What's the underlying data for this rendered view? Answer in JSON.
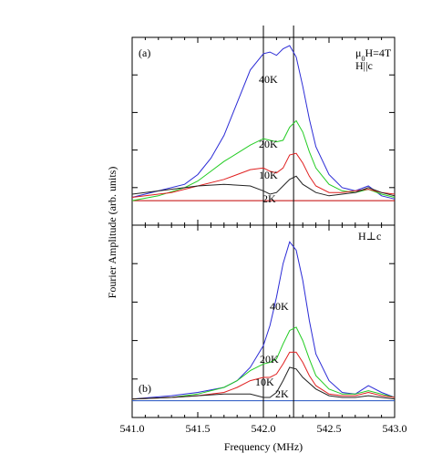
{
  "chart_data": [
    {
      "type": "line",
      "panel_label": "(a)",
      "annotation": [
        "μ0H=4T",
        "H||c"
      ],
      "xlabel": "Frequency (MHz)",
      "ylabel": "Fourier Amplitude (arb. units)",
      "xlim": [
        541.0,
        543.0
      ],
      "ylim": [
        -0.15,
        1.0
      ],
      "grid": false,
      "legend": "inline labels beside each curve",
      "reference_lines_x": [
        542.0,
        542.23
      ],
      "baseline": {
        "y": 0.0,
        "color": "#c00000"
      },
      "series": [
        {
          "name": "40K",
          "color": "#2b2bd6",
          "x": [
            541.0,
            541.2,
            541.4,
            541.5,
            541.6,
            541.7,
            541.8,
            541.9,
            542.0,
            542.05,
            542.1,
            542.15,
            542.2,
            542.25,
            542.3,
            542.35,
            542.4,
            542.5,
            542.6,
            542.7,
            542.8,
            542.9,
            543.0
          ],
          "y": [
            0.02,
            0.06,
            0.1,
            0.16,
            0.26,
            0.4,
            0.6,
            0.8,
            0.9,
            0.91,
            0.89,
            0.93,
            0.95,
            0.88,
            0.7,
            0.5,
            0.33,
            0.16,
            0.08,
            0.06,
            0.09,
            0.03,
            0.01
          ]
        },
        {
          "name": "20K",
          "color": "#22cc22",
          "x": [
            541.0,
            541.2,
            541.4,
            541.5,
            541.6,
            541.7,
            541.8,
            541.9,
            542.0,
            542.1,
            542.15,
            542.2,
            542.25,
            542.3,
            542.35,
            542.4,
            542.5,
            542.6,
            542.7,
            542.8,
            542.9,
            543.0
          ],
          "y": [
            0.0,
            0.03,
            0.08,
            0.12,
            0.18,
            0.24,
            0.29,
            0.34,
            0.38,
            0.36,
            0.37,
            0.45,
            0.49,
            0.42,
            0.3,
            0.2,
            0.1,
            0.06,
            0.05,
            0.07,
            0.04,
            0.02
          ]
        },
        {
          "name": "10K",
          "color": "#e02020",
          "x": [
            541.0,
            541.3,
            541.5,
            541.7,
            541.8,
            541.9,
            542.0,
            542.05,
            542.1,
            542.15,
            542.2,
            542.25,
            542.3,
            542.35,
            542.4,
            542.5,
            542.6,
            542.7,
            542.8,
            542.9,
            543.0
          ],
          "y": [
            0.02,
            0.05,
            0.09,
            0.13,
            0.16,
            0.19,
            0.2,
            0.18,
            0.17,
            0.2,
            0.28,
            0.29,
            0.23,
            0.15,
            0.09,
            0.05,
            0.05,
            0.06,
            0.07,
            0.05,
            0.04
          ]
        },
        {
          "name": "2K",
          "color": "#222222",
          "x": [
            541.0,
            541.3,
            541.5,
            541.7,
            541.9,
            542.0,
            542.05,
            542.1,
            542.15,
            542.2,
            542.25,
            542.3,
            542.4,
            542.5,
            542.6,
            542.7,
            542.8,
            542.9,
            543.0
          ],
          "y": [
            0.04,
            0.07,
            0.09,
            0.1,
            0.09,
            0.06,
            0.04,
            0.05,
            0.09,
            0.13,
            0.15,
            0.1,
            0.05,
            0.03,
            0.04,
            0.05,
            0.08,
            0.05,
            0.03
          ]
        }
      ]
    },
    {
      "type": "line",
      "panel_label": "(b)",
      "annotation": [
        "H⊥c"
      ],
      "xlabel": "Frequency (MHz)",
      "xlim": [
        541.0,
        543.0
      ],
      "ylim": [
        -0.1,
        1.05
      ],
      "grid": false,
      "legend": "inline labels beside each curve",
      "reference_lines_x": [
        542.0,
        542.23
      ],
      "baseline": {
        "y": 0.0,
        "color": "#2050c0"
      },
      "xticks": [
        "541.0",
        "541.5",
        "542.0",
        "542.5",
        "543.0"
      ],
      "series": [
        {
          "name": "40K",
          "color": "#2b2bd6",
          "x": [
            541.0,
            541.3,
            541.5,
            541.7,
            541.8,
            541.9,
            542.0,
            542.05,
            542.1,
            542.15,
            542.2,
            542.25,
            542.3,
            542.35,
            542.4,
            542.5,
            542.6,
            542.7,
            542.8,
            542.9,
            543.0
          ],
          "y": [
            0.01,
            0.03,
            0.05,
            0.08,
            0.12,
            0.2,
            0.33,
            0.45,
            0.62,
            0.82,
            0.95,
            0.9,
            0.72,
            0.48,
            0.28,
            0.12,
            0.05,
            0.04,
            0.09,
            0.05,
            0.02
          ]
        },
        {
          "name": "20K",
          "color": "#22cc22",
          "x": [
            541.0,
            541.3,
            541.5,
            541.7,
            541.8,
            541.9,
            542.0,
            542.05,
            542.1,
            542.15,
            542.2,
            542.25,
            542.3,
            542.35,
            542.4,
            542.5,
            542.6,
            542.7,
            542.8,
            542.9,
            543.0
          ],
          "y": [
            0.01,
            0.02,
            0.04,
            0.08,
            0.12,
            0.18,
            0.22,
            0.23,
            0.25,
            0.34,
            0.42,
            0.44,
            0.36,
            0.25,
            0.15,
            0.07,
            0.04,
            0.04,
            0.06,
            0.04,
            0.02
          ]
        },
        {
          "name": "10K",
          "color": "#e02020",
          "x": [
            541.0,
            541.3,
            541.5,
            541.7,
            541.8,
            541.9,
            542.0,
            542.05,
            542.1,
            542.15,
            542.2,
            542.25,
            542.3,
            542.35,
            542.4,
            542.5,
            542.6,
            542.7,
            542.8,
            542.9,
            543.0
          ],
          "y": [
            0.01,
            0.02,
            0.03,
            0.05,
            0.08,
            0.12,
            0.14,
            0.14,
            0.16,
            0.22,
            0.29,
            0.29,
            0.23,
            0.15,
            0.09,
            0.04,
            0.03,
            0.03,
            0.05,
            0.03,
            0.02
          ]
        },
        {
          "name": "2K",
          "color": "#222222",
          "x": [
            541.0,
            541.3,
            541.5,
            541.7,
            541.9,
            542.0,
            542.05,
            542.1,
            542.15,
            542.2,
            542.25,
            542.3,
            542.4,
            542.5,
            542.6,
            542.7,
            542.8,
            542.9,
            543.0
          ],
          "y": [
            0.01,
            0.02,
            0.03,
            0.04,
            0.04,
            0.02,
            0.02,
            0.05,
            0.12,
            0.2,
            0.19,
            0.14,
            0.07,
            0.03,
            0.02,
            0.02,
            0.03,
            0.02,
            0.01
          ]
        }
      ]
    }
  ]
}
